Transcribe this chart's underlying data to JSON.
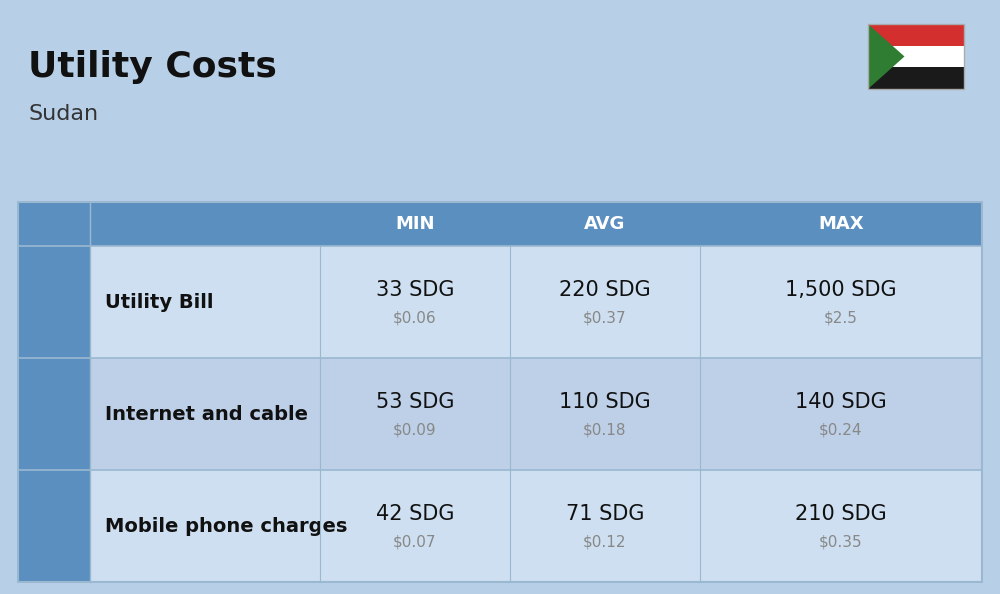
{
  "title": "Utility Costs",
  "subtitle": "Sudan",
  "background_color": "#b8cfe8",
  "header_bg_color": "#5b8fbf",
  "header_text_color": "#ffffff",
  "row_color_odd": "#cddff0",
  "row_color_even": "#bdd0e8",
  "sep_line_color": "#9ab8d0",
  "columns": [
    "MIN",
    "AVG",
    "MAX"
  ],
  "rows": [
    {
      "label": "Utility Bill",
      "min_sdg": "33 SDG",
      "min_usd": "$0.06",
      "avg_sdg": "220 SDG",
      "avg_usd": "$0.37",
      "max_sdg": "1,500 SDG",
      "max_usd": "$2.5"
    },
    {
      "label": "Internet and cable",
      "min_sdg": "53 SDG",
      "min_usd": "$0.09",
      "avg_sdg": "110 SDG",
      "avg_usd": "$0.18",
      "max_sdg": "140 SDG",
      "max_usd": "$0.24"
    },
    {
      "label": "Mobile phone charges",
      "min_sdg": "42 SDG",
      "min_usd": "$0.07",
      "avg_sdg": "71 SDG",
      "avg_usd": "$0.12",
      "max_sdg": "210 SDG",
      "max_usd": "$0.35"
    }
  ],
  "title_fontsize": 26,
  "subtitle_fontsize": 16,
  "header_fontsize": 13,
  "cell_sdg_fontsize": 15,
  "cell_usd_fontsize": 11,
  "label_fontsize": 14,
  "flag_red": "#d32f2f",
  "flag_white": "#ffffff",
  "flag_black": "#1a1a1a",
  "flag_green": "#2e7d32"
}
